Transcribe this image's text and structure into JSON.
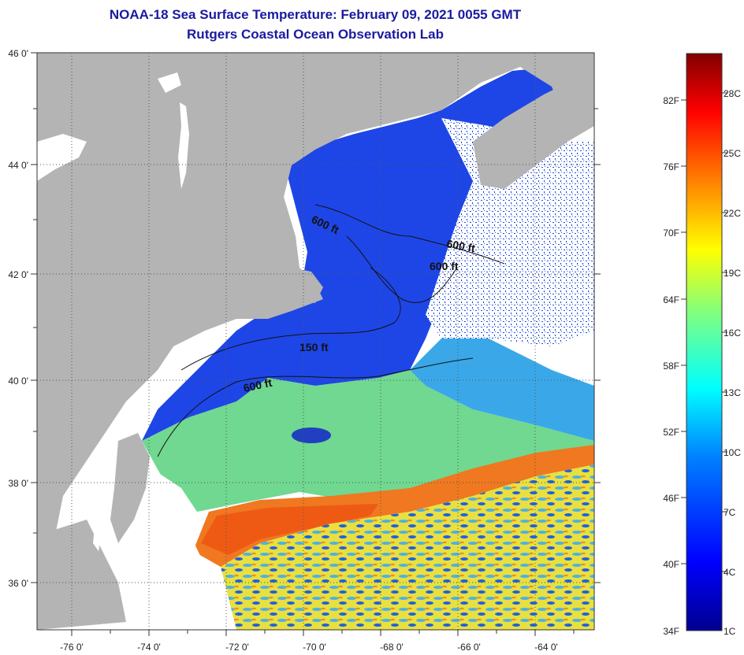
{
  "title_line1": "NOAA-18 Sea Surface Temperature:  February 09, 2021 0055 GMT",
  "title_line2": "Rutgers Coastal Ocean Observation Lab",
  "map": {
    "lon_labels": [
      "-76 0'",
      "-74 0'",
      "-72 0'",
      "-70 0'",
      "-68 0'",
      "-66 0'",
      "-64 0'"
    ],
    "lat_labels": [
      "46 0'",
      "44 0'",
      "42 0'",
      "40 0'",
      "38 0'",
      "36 0'"
    ],
    "contour_labels": [
      "600 ft",
      "600 ft",
      "600 ft",
      "150 ft",
      "600 ft"
    ],
    "colors": {
      "land": "#b4b4b4",
      "no_data": "#ffffff",
      "cold": "#1030e0",
      "cool": "#2a70ff",
      "mid": "#40d0b0",
      "warm": "#f0e030",
      "hot": "#f07018"
    }
  },
  "colorbar": {
    "fahrenheit_labels": [
      "82F",
      "76F",
      "70F",
      "64F",
      "58F",
      "52F",
      "46F",
      "40F",
      "34F"
    ],
    "celsius_labels": [
      "28C",
      "25C",
      "22C",
      "19C",
      "16C",
      "13C",
      "10C",
      "7C",
      "4C",
      "1C"
    ],
    "gradient": [
      "#00008f",
      "#0000ff",
      "#0080ff",
      "#00ffff",
      "#80ff80",
      "#ffff00",
      "#ff8000",
      "#ff0000",
      "#800000"
    ]
  }
}
